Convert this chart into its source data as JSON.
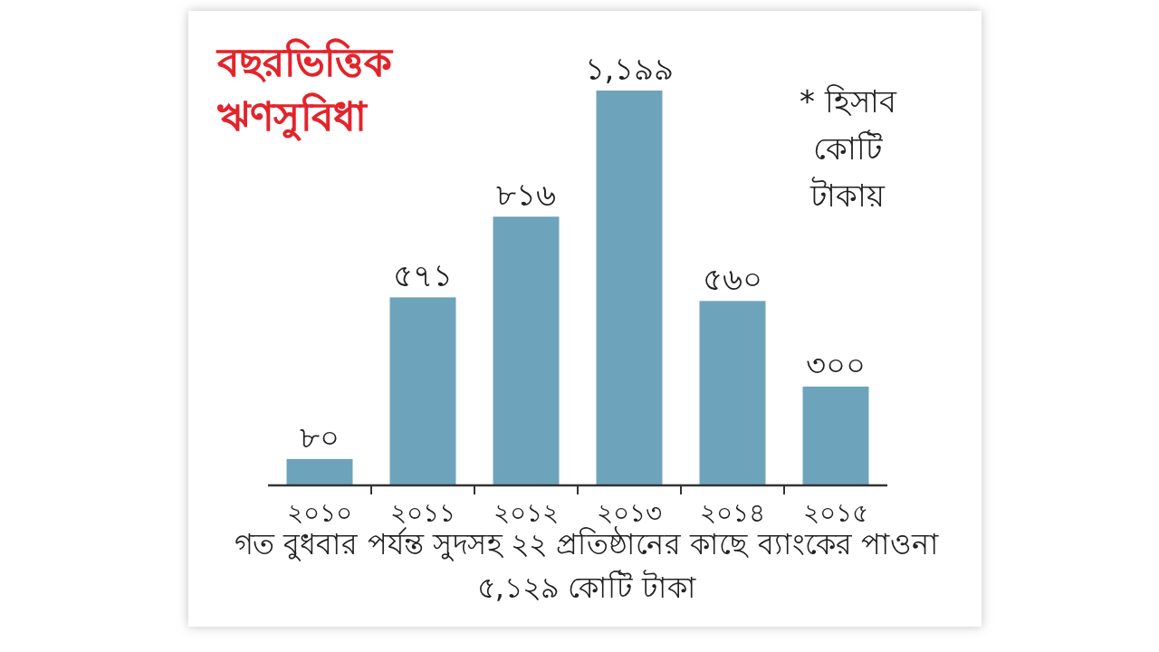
{
  "chart_data": {
    "type": "bar",
    "title": "বছরভিত্তিক ঋণসুবিধা",
    "categories": [
      "২০১০",
      "২০১১",
      "২০১২",
      "২০১৩",
      "২০১৪",
      "২০১৫"
    ],
    "values": [
      80,
      571,
      816,
      1199,
      560,
      300
    ],
    "value_labels": [
      "৮০",
      "৫৭১",
      "৮১৬",
      "১,১৯৯",
      "৫৬০",
      "৩০০"
    ],
    "color": "#6ea3bc",
    "annotations": [
      "* হিসাব কোটি টাকায়",
      "গত বুধবার পর্যন্ত সুদসহ ২২ প্রতিষ্ঠানের কাছে ব্যাংকের পাওনা ৫,১২৯ কোটি টাকা"
    ]
  }
}
